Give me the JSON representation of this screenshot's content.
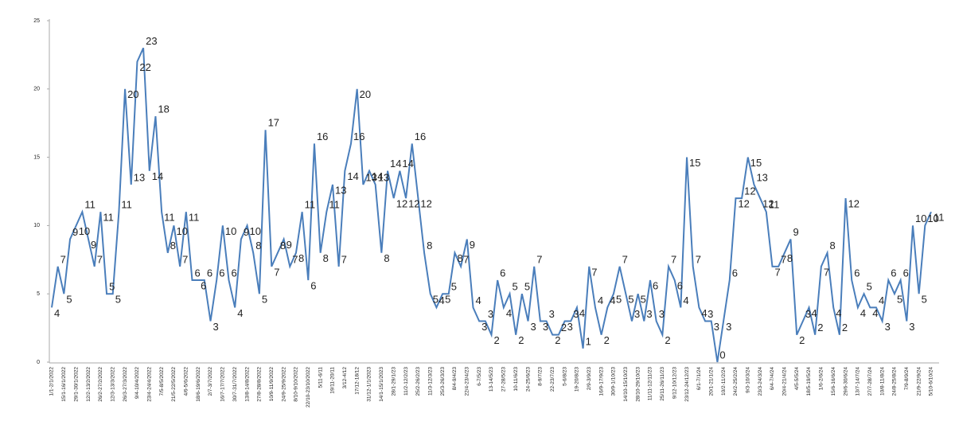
{
  "chart_data": {
    "type": "line",
    "categories": [
      "1/1-2/1/2022",
      null,
      "15/1-16/1/2022",
      null,
      "29/1-30/1/2022",
      null,
      "12/2-13/2/2022",
      null,
      "26/2-27/2/2022",
      null,
      "12/3-13/3/2022",
      null,
      "26/3-27/3/2022",
      null,
      "9/4-10/4/2022",
      null,
      "23/4-24/4/2022",
      null,
      "7/5-8/5/2022",
      null,
      "21/5-22/5/2022",
      null,
      "4/6-5/6/2022",
      null,
      "18/6-19/6/2022",
      null,
      "2/7-3/7/2022",
      null,
      "16/7-17/7/2022",
      null,
      "30/7-31/7/2022",
      null,
      "13/8-14/8/2022",
      null,
      "27/8-28/8/2022",
      null,
      "10/9-11/9/2022",
      null,
      "24/9-25/9/2022",
      null,
      "8/10-9/10/2022",
      null,
      "22/10-23/10/2022",
      null,
      "5/11-6/11",
      null,
      "19/11-20/11",
      null,
      "3/12-4/12",
      null,
      "17/12-18/12",
      null,
      "31/12-1/1/2023",
      null,
      "14/1-15/1/2023",
      null,
      "28/1-29/1/23",
      null,
      "11/2-12/2/23",
      null,
      "25/2-26/2/23",
      null,
      "11/3-12/3/23",
      null,
      "25/3-26/3/23",
      null,
      "8/4-9/4/23",
      null,
      "22/4-23/4/23",
      null,
      "6-7/5/23",
      null,
      "13-14/5/23",
      null,
      "27-28/5/23",
      null,
      "10-11/6/23",
      null,
      "24-25/6/23",
      null,
      "8-9/7/23",
      null,
      "22-23/7/23",
      null,
      "5-6/8/23",
      null,
      "19-20/8/23",
      null,
      "2/9-3/9/23",
      null,
      "16/9-17/9/23",
      null,
      "30/9-1/10/23",
      null,
      "14/10-15/10/23",
      null,
      "28/10-29/10/23",
      null,
      "11/11-12/11/23",
      null,
      "25/11-26/11/23",
      null,
      "9/12-10/12/23",
      null,
      "23/12-24/12/23",
      null,
      "6/1-7/1/24",
      null,
      "20/1-21/1/24",
      null,
      "10/2-11/2/24",
      null,
      "24/2-25/2/24",
      null,
      "9/3-10/3/24",
      null,
      "23/3-24/3/24",
      null,
      "6/4-7/4/24",
      null,
      "20/4-21/4/24",
      null,
      "4/5-5/5/24",
      null,
      "18/5-19/5/24",
      null,
      "1/6-2/6/24",
      null,
      "15/6-16/6/24",
      null,
      "29/6-30/6/24",
      null,
      "13/7-14/7/24",
      null,
      "27/7-28/7/24",
      null,
      "10/8-11/8/24",
      null,
      "24/8-25/8/24",
      null,
      "7/9-8/9/24",
      null,
      "21/9-22/9/24",
      null,
      "5/10-6/10/24"
    ],
    "values": [
      4,
      7,
      5,
      9,
      10,
      11,
      9,
      7,
      11,
      5,
      5,
      11,
      20,
      13,
      22,
      23,
      14,
      18,
      11,
      8,
      10,
      7,
      11,
      6,
      6,
      6,
      3,
      6,
      10,
      6,
      4,
      9,
      10,
      8,
      5,
      17,
      7,
      8,
      9,
      7,
      8,
      11,
      6,
      16,
      8,
      11,
      13,
      7,
      14,
      16,
      20,
      13,
      14,
      13,
      8,
      14,
      12,
      14,
      12,
      16,
      12,
      8,
      5,
      4,
      5,
      5,
      8,
      7,
      9,
      4,
      3,
      3,
      2,
      6,
      4,
      5,
      2,
      5,
      3,
      7,
      3,
      3,
      2,
      2,
      3,
      3,
      4,
      1,
      7,
      4,
      2,
      4,
      5,
      7,
      5,
      3,
      5,
      3,
      6,
      3,
      2,
      7,
      6,
      4,
      15,
      7,
      4,
      3,
      3,
      0,
      3,
      6,
      12,
      12,
      15,
      13,
      12,
      11,
      7,
      7,
      8,
      9,
      2,
      3,
      4,
      2,
      7,
      8,
      4,
      2,
      12,
      6,
      4,
      5,
      4,
      4,
      3,
      6,
      5,
      6,
      3,
      10,
      5,
      10,
      11
    ],
    "color": "#4a7ebb",
    "ylim": [
      0,
      25
    ],
    "yticks": [
      0,
      5,
      10,
      15,
      20,
      25
    ]
  }
}
